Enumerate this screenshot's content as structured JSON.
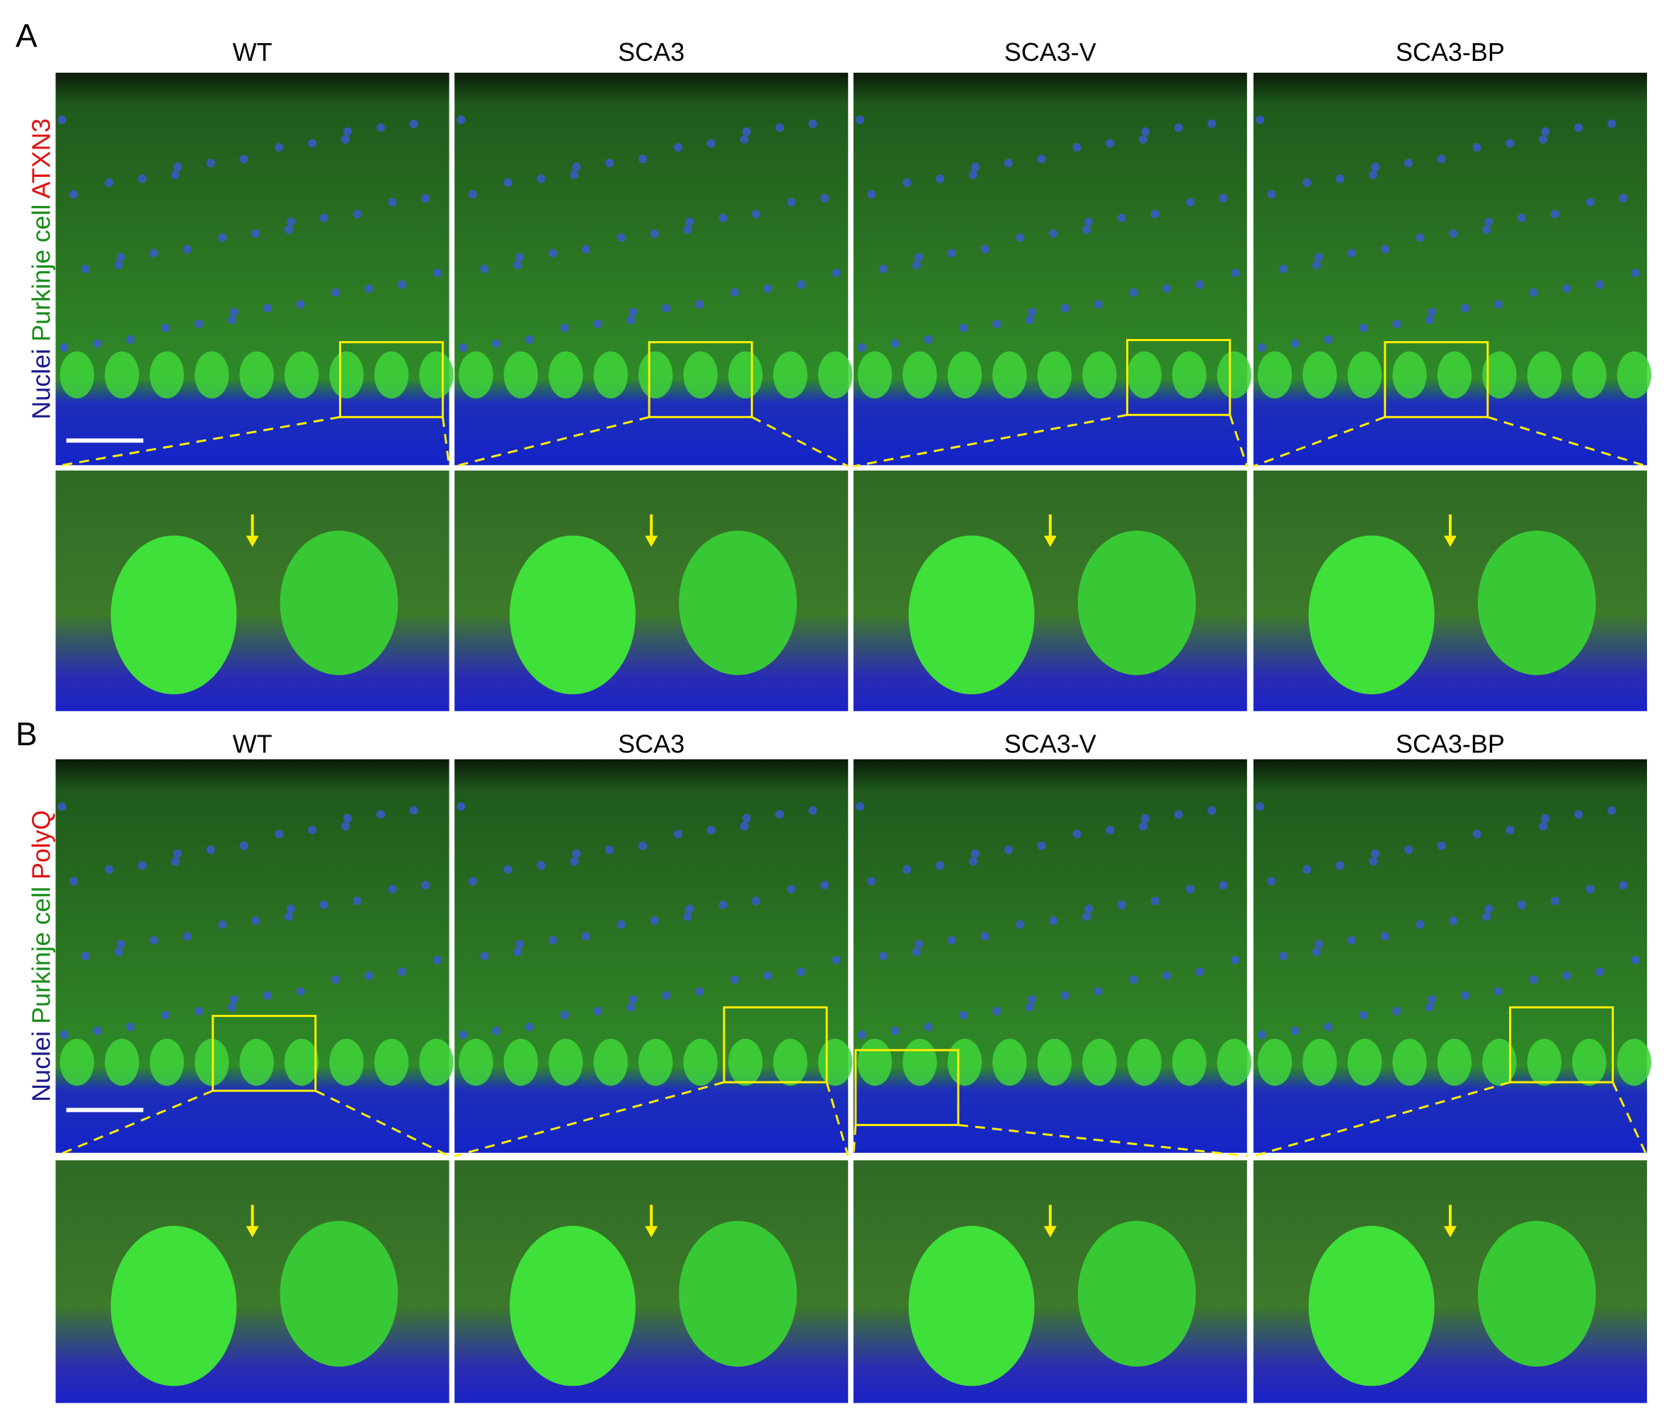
{
  "panels": [
    {
      "label": "A",
      "stain_label": {
        "nuclei": "Nuclei",
        "cell": "Purkinje cell",
        "target": "ATXN3"
      },
      "columns": [
        "WT",
        "SCA3",
        "SCA3-V",
        "SCA3-BP"
      ]
    },
    {
      "label": "B",
      "stain_label": {
        "nuclei": "Nuclei",
        "cell": "Purkinje cell",
        "target": "PolyQ"
      },
      "columns": [
        "WT",
        "SCA3",
        "SCA3-V",
        "SCA3-BP"
      ]
    }
  ]
}
